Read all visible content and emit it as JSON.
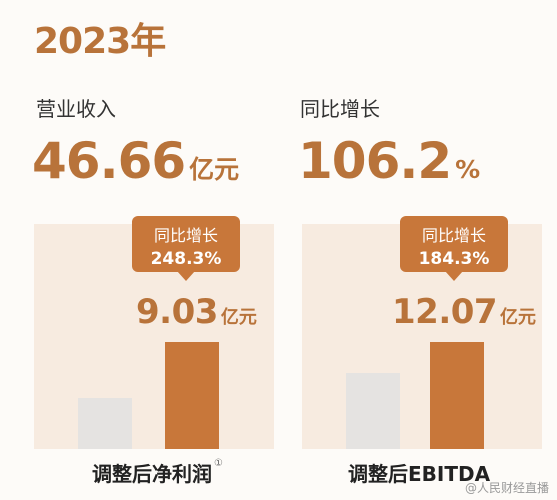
{
  "year": "2023年",
  "revenue": {
    "label": "营业收入",
    "value": "46.66",
    "unit": "亿元"
  },
  "yoy": {
    "label": "同比增长",
    "value": "106.2",
    "unit": "%"
  },
  "chart_data": [
    {
      "type": "bar",
      "title": "调整后净利润",
      "footnote": "①",
      "values": [
        null,
        9.03
      ],
      "value_label": "9.03",
      "unit": "亿元",
      "growth_label": "同比增长",
      "growth": "248.3%",
      "colors": [
        "#e5e3e1",
        "#c8773a"
      ]
    },
    {
      "type": "bar",
      "title": "调整后EBITDA",
      "footnote": "",
      "values": [
        null,
        12.07
      ],
      "value_label": "12.07",
      "unit": "亿元",
      "growth_label": "同比增长",
      "growth": "184.3%",
      "colors": [
        "#e5e3e1",
        "#c8773a"
      ]
    }
  ],
  "watermark": "@人民财经直播"
}
